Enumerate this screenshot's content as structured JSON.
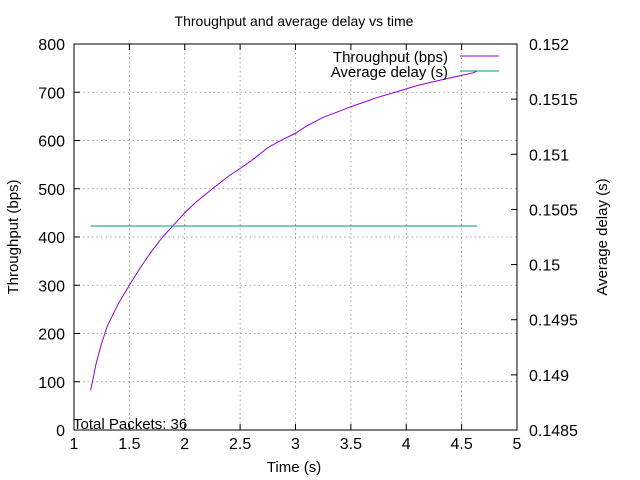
{
  "chart_data": {
    "type": "line",
    "title": "Throughput and average delay vs time",
    "xlabel": "Time (s)",
    "ylabel": "Throughput (bps)",
    "y2label": "Average delay (s)",
    "xlim": [
      1,
      5
    ],
    "ylim": [
      0,
      800
    ],
    "y2lim": [
      0.1485,
      0.152
    ],
    "xticks": [
      1,
      1.5,
      2,
      2.5,
      3,
      3.5,
      4,
      4.5,
      5
    ],
    "xtick_labels": [
      "1",
      "1.5",
      "2",
      "2.5",
      "3",
      "3.5",
      "4",
      "4.5",
      "5"
    ],
    "yticks": [
      0,
      100,
      200,
      300,
      400,
      500,
      600,
      700,
      800
    ],
    "ytick_labels": [
      "0",
      "100",
      "200",
      "300",
      "400",
      "500",
      "600",
      "700",
      "800"
    ],
    "y2ticks": [
      0.1485,
      0.149,
      0.1495,
      0.15,
      0.1505,
      0.151,
      0.1515,
      0.152
    ],
    "y2tick_labels": [
      "0.1485",
      "0.149",
      "0.1495",
      "0.15",
      "0.1505",
      "0.151",
      "0.1515",
      "0.152"
    ],
    "grid": true,
    "legend_position": "top-right",
    "annotation": "Total Packets: 36",
    "series": [
      {
        "name": "Throughput (bps)",
        "axis": "y",
        "color": "#9400d3",
        "x": [
          1.15,
          1.2,
          1.25,
          1.3,
          1.4,
          1.5,
          1.6,
          1.7,
          1.8,
          1.9,
          2.0,
          2.1,
          2.25,
          2.4,
          2.5,
          2.6,
          2.75,
          2.85,
          3.0,
          3.1,
          3.25,
          3.4,
          3.5,
          3.6,
          3.75,
          3.9,
          4.0,
          4.1,
          4.25,
          4.4,
          4.5,
          4.6,
          4.64
        ],
        "values": [
          82,
          138,
          180,
          215,
          262,
          300,
          337,
          370,
          400,
          425,
          450,
          472,
          500,
          527,
          542,
          558,
          585,
          598,
          615,
          630,
          648,
          661,
          670,
          678,
          690,
          700,
          707,
          714,
          722,
          730,
          735,
          740,
          744
        ]
      },
      {
        "name": "Average delay (s)",
        "axis": "y2",
        "color": "#009e73",
        "x": [
          1.15,
          4.64
        ],
        "values": [
          0.15035,
          0.15035
        ]
      }
    ]
  }
}
